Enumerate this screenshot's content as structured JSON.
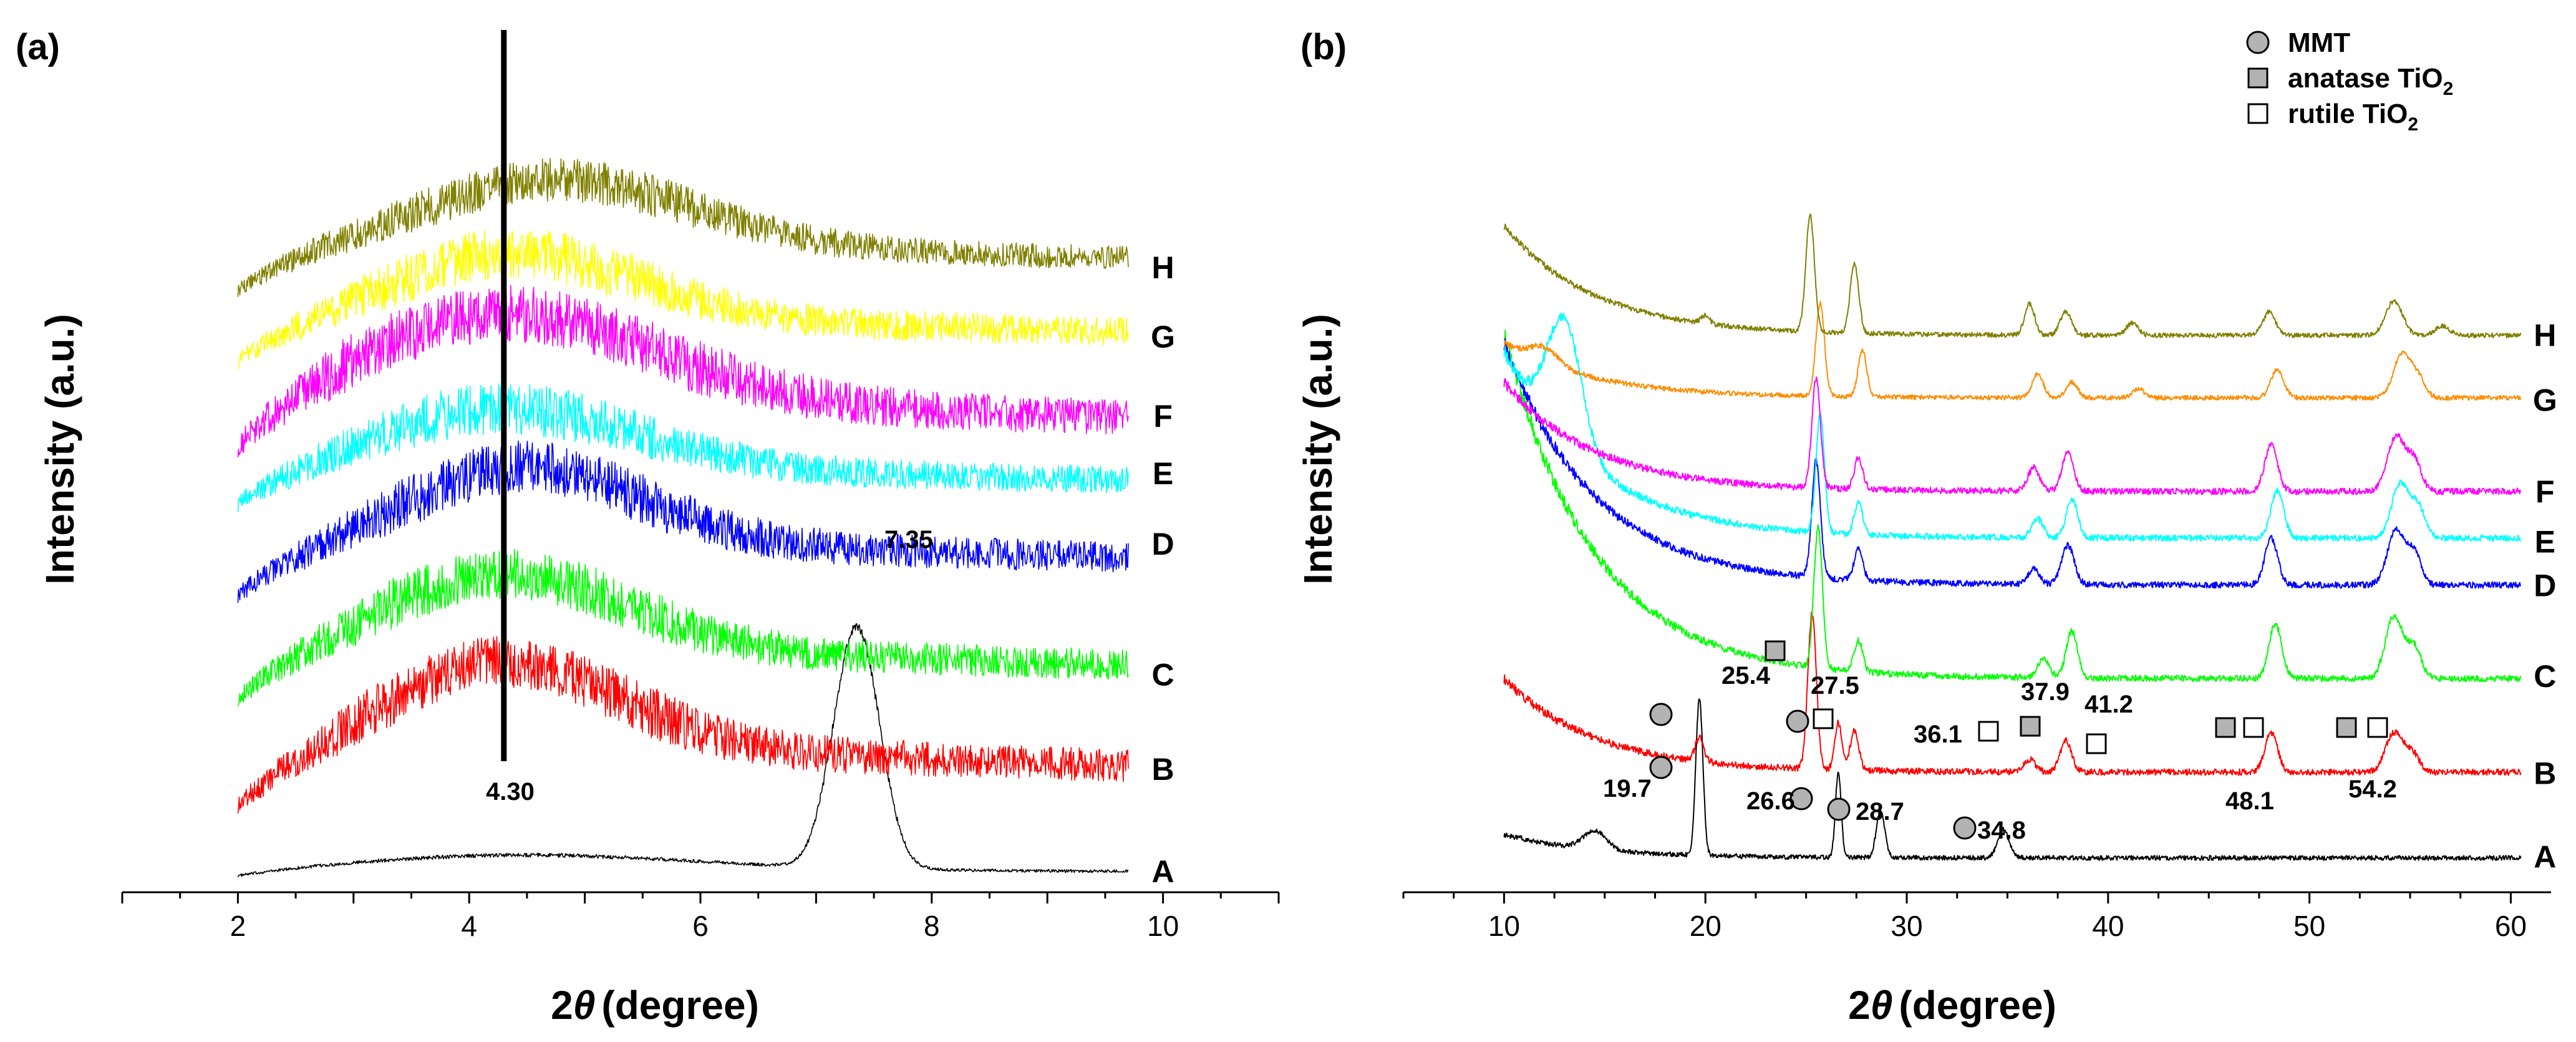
{
  "chart_data": [
    {
      "type": "line",
      "panel": "(a)",
      "xlabel": "2",
      "xlabel_theta": "θ",
      "xlabel_unit": "(degree)",
      "ylabel": "Intensity (a.u.)",
      "xlim": [
        1,
        11
      ],
      "xticks": [
        2,
        4,
        6,
        8,
        10
      ],
      "x_range": [
        2,
        9.7
      ],
      "series": [
        {
          "name": "A",
          "color": "#000000",
          "offset": 0,
          "features": [
            {
              "type": "broad",
              "center": 4.5,
              "height": 0.25,
              "width": 2.0
            },
            {
              "type": "peak",
              "center": 7.35,
              "height": 2.5,
              "width": 0.28
            }
          ],
          "noise": 0.02
        },
        {
          "name": "B",
          "color": "#ff0000",
          "offset": 0.7,
          "features": [
            {
              "type": "broad",
              "center": 4.3,
              "height": 1.6,
              "width": 1.4
            }
          ],
          "noise": 0.12
        },
        {
          "name": "C",
          "color": "#00ff00",
          "offset": 1.8,
          "features": [
            {
              "type": "broad",
              "center": 4.3,
              "height": 1.4,
              "width": 1.5
            }
          ],
          "noise": 0.12
        },
        {
          "name": "D",
          "color": "#0000ff",
          "offset": 2.9,
          "features": [
            {
              "type": "broad",
              "center": 4.5,
              "height": 1.4,
              "width": 1.4
            }
          ],
          "noise": 0.12
        },
        {
          "name": "E",
          "color": "#00ffff",
          "offset": 3.8,
          "features": [
            {
              "type": "broad",
              "center": 4.3,
              "height": 1.1,
              "width": 1.6
            }
          ],
          "noise": 0.12
        },
        {
          "name": "F",
          "color": "#ff00ff",
          "offset": 4.3,
          "features": [
            {
              "type": "broad",
              "center": 4.3,
              "height": 1.6,
              "width": 1.8
            }
          ],
          "noise": 0.13
        },
        {
          "name": "G",
          "color": "#ffff00",
          "offset": 5.3,
          "features": [
            {
              "type": "broad",
              "center": 4.4,
              "height": 1.2,
              "width": 1.5
            }
          ],
          "noise": 0.12
        },
        {
          "name": "H",
          "color": "#808000",
          "offset": 6.05,
          "features": [
            {
              "type": "broad",
              "center": 4.8,
              "height": 1.2,
              "width": 1.6
            }
          ],
          "noise": 0.1
        }
      ],
      "annotations": [
        {
          "text": "7.35",
          "x": 7.35
        },
        {
          "text": "4.30",
          "x": 4.3,
          "vertical_line": true
        }
      ]
    },
    {
      "type": "line",
      "panel": "(b)",
      "xlabel": "2",
      "xlabel_theta": "θ",
      "xlabel_unit": "(degree)",
      "ylabel": "Intensity (a.u.)",
      "xlim": [
        5,
        62
      ],
      "xticks": [
        10,
        20,
        30,
        40,
        50,
        60
      ],
      "x_range": [
        10,
        60.5
      ],
      "series": [
        {
          "name": "A",
          "color": "#000000",
          "offset": 0,
          "low_angle": 0.15,
          "peaks": [
            [
              19.7,
              1.0,
              0.25
            ],
            [
              26.6,
              0.55,
              0.2
            ],
            [
              28.7,
              0.3,
              0.3
            ],
            [
              34.8,
              0.18,
              0.4
            ],
            [
              14.5,
              0.12,
              0.8
            ]
          ],
          "noise": 0.015
        },
        {
          "name": "B",
          "color": "#ff0000",
          "offset": 0.55,
          "low_angle": 0.6,
          "peaks": [
            [
              19.7,
              0.15,
              0.3
            ],
            [
              25.3,
              1.0,
              0.3
            ],
            [
              26.6,
              0.3,
              0.25
            ],
            [
              27.4,
              0.25,
              0.3
            ],
            [
              36.1,
              0.08,
              0.4
            ],
            [
              37.9,
              0.2,
              0.4
            ],
            [
              48.1,
              0.25,
              0.45
            ],
            [
              54.2,
              0.25,
              0.6
            ],
            [
              55.1,
              0.12,
              0.5
            ]
          ],
          "noise": 0.02
        },
        {
          "name": "C",
          "color": "#00ff00",
          "offset": 1.15,
          "low_angle": 2.2,
          "peaks": [
            [
              25.6,
              0.9,
              0.3
            ],
            [
              27.6,
              0.2,
              0.3
            ],
            [
              36.8,
              0.12,
              0.4
            ],
            [
              38.2,
              0.3,
              0.4
            ],
            [
              48.3,
              0.35,
              0.45
            ],
            [
              54.2,
              0.4,
              0.6
            ],
            [
              55.2,
              0.2,
              0.5
            ]
          ],
          "noise": 0.02
        },
        {
          "name": "D",
          "color": "#0000ff",
          "offset": 1.75,
          "low_angle": 1.55,
          "peaks": [
            [
              25.5,
              0.75,
              0.3
            ],
            [
              27.6,
              0.2,
              0.3
            ],
            [
              36.3,
              0.1,
              0.4
            ],
            [
              38.0,
              0.25,
              0.45
            ],
            [
              48.1,
              0.3,
              0.45
            ],
            [
              54.3,
              0.35,
              0.6
            ],
            [
              55.2,
              0.2,
              0.5
            ]
          ],
          "noise": 0.02
        },
        {
          "name": "E",
          "color": "#00ffff",
          "offset": 2.05,
          "low_angle": 1.2,
          "peaks": [
            [
              13.0,
              0.8,
              1.2
            ],
            [
              25.7,
              0.75,
              0.3
            ],
            [
              27.6,
              0.2,
              0.3
            ],
            [
              36.5,
              0.12,
              0.4
            ],
            [
              38.2,
              0.25,
              0.4
            ],
            [
              48.4,
              0.3,
              0.45
            ],
            [
              54.5,
              0.35,
              0.6
            ],
            [
              55.4,
              0.2,
              0.5
            ]
          ],
          "noise": 0.02
        },
        {
          "name": "F",
          "color": "#ff00ff",
          "offset": 2.35,
          "low_angle": 0.7,
          "peaks": [
            [
              25.5,
              0.7,
              0.3
            ],
            [
              27.6,
              0.2,
              0.3
            ],
            [
              36.3,
              0.15,
              0.4
            ],
            [
              38.0,
              0.25,
              0.4
            ],
            [
              48.1,
              0.3,
              0.45
            ],
            [
              54.3,
              0.35,
              0.6
            ],
            [
              55.2,
              0.2,
              0.5
            ]
          ],
          "noise": 0.02
        },
        {
          "name": "G",
          "color": "#ff8c00",
          "offset": 2.95,
          "low_angle": 0.35,
          "peaks": [
            [
              12.0,
              0.1,
              1.0
            ],
            [
              25.7,
              0.6,
              0.3
            ],
            [
              27.8,
              0.3,
              0.3
            ],
            [
              36.5,
              0.15,
              0.4
            ],
            [
              38.2,
              0.1,
              0.4
            ],
            [
              41.5,
              0.06,
              0.4
            ],
            [
              48.4,
              0.18,
              0.45
            ],
            [
              54.6,
              0.28,
              0.6
            ],
            [
              55.4,
              0.12,
              0.5
            ]
          ],
          "noise": 0.015
        },
        {
          "name": "H",
          "color": "#808000",
          "offset": 3.35,
          "low_angle": 0.7,
          "peaks": [
            [
              20.0,
              0.05,
              0.3
            ],
            [
              25.2,
              0.75,
              0.3
            ],
            [
              27.4,
              0.45,
              0.3
            ],
            [
              36.1,
              0.2,
              0.35
            ],
            [
              37.9,
              0.15,
              0.4
            ],
            [
              41.2,
              0.08,
              0.4
            ],
            [
              48.0,
              0.15,
              0.45
            ],
            [
              54.2,
              0.22,
              0.6
            ],
            [
              56.6,
              0.06,
              0.5
            ]
          ],
          "noise": 0.015
        }
      ],
      "annotations": [
        "19.7",
        "25.4",
        "26.6",
        "27.5",
        "28.7",
        "34.8",
        "36.1",
        "37.9",
        "41.2",
        "48.1",
        "54.2"
      ],
      "legend": [
        {
          "label": "MMT",
          "marker": "circle"
        },
        {
          "label": "anatase TiO",
          "sub": "2",
          "marker": "filled-square"
        },
        {
          "label": "rutile TiO",
          "sub": "2",
          "marker": "open-square"
        }
      ]
    }
  ]
}
